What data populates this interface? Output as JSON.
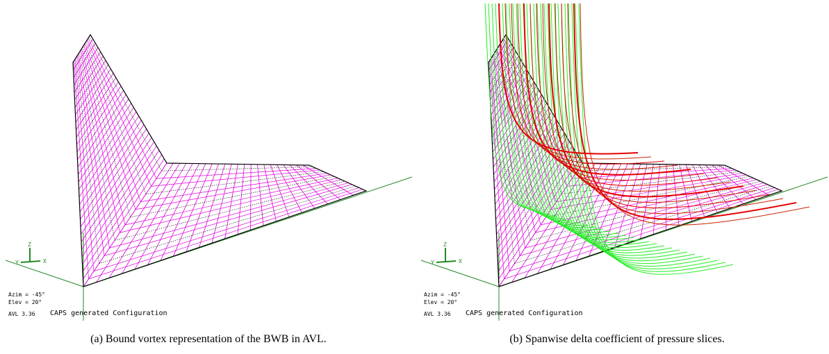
{
  "panels": [
    {
      "overlay": {
        "azim": "Azim = -45°",
        "elev": "Elev = 20°",
        "version": "AVL 3.36",
        "title": "CAPS generated Configuration",
        "axes": {
          "z": "Z",
          "y": "Y",
          "x": "X"
        }
      },
      "caption": "(a) Bound vortex representation of the BWB in AVL."
    },
    {
      "overlay": {
        "azim": "Azim = -45°",
        "elev": "Elev = 20°",
        "version": "AVL 3.36",
        "title": "CAPS generated Configuration",
        "axes": {
          "z": "Z",
          "y": "Y",
          "x": "X"
        }
      },
      "caption": "(b) Spanwise delta coefficient of pressure slices."
    }
  ]
}
